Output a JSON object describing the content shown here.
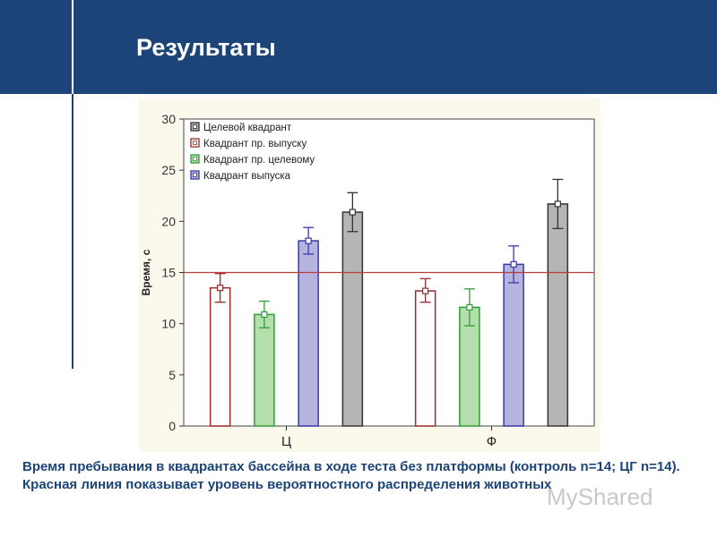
{
  "slide": {
    "title": "Результаты",
    "caption": "Время пребывания в квадрантах бассейна в ходе теста без платформы (контроль n=14; ЦГ n=14). Красная линия показывает уровень вероятностного распределения животных",
    "watermark": "MyShared"
  },
  "chart_data": {
    "type": "bar",
    "ylabel": "Время, с",
    "xlabel": "",
    "ylim": [
      0,
      30
    ],
    "yticks": [
      0,
      5,
      10,
      15,
      20,
      25,
      30
    ],
    "categories": [
      "Ц",
      "Ф"
    ],
    "reference_line": {
      "value": 15,
      "color": "#c0393b"
    },
    "legend_position": "top-left",
    "grid": false,
    "series": [
      {
        "name": "Квадрант пр. выпуску",
        "color": "#9b2a2a",
        "fill": "#ffffff",
        "values": [
          13.5,
          13.2
        ],
        "err_low": [
          12.1,
          12.1
        ],
        "err_high": [
          14.9,
          14.4
        ]
      },
      {
        "name": "Квадрант пр. целевому",
        "color": "#2e9e35",
        "fill": "#b4dfad",
        "values": [
          10.9,
          11.6
        ],
        "err_low": [
          9.6,
          9.8
        ],
        "err_high": [
          12.2,
          13.4
        ]
      },
      {
        "name": "Квадрант выпуска",
        "color": "#3939a8",
        "fill": "#b4b4de",
        "values": [
          18.1,
          15.8
        ],
        "err_low": [
          16.8,
          14.0
        ],
        "err_high": [
          19.4,
          17.6
        ]
      },
      {
        "name": "Целевой квадрант",
        "color": "#333333",
        "fill": "#b5b5b5",
        "values": [
          20.9,
          21.7
        ],
        "err_low": [
          19.0,
          19.3
        ],
        "err_high": [
          22.8,
          24.1
        ]
      }
    ],
    "legend_order": [
      "Целевой квадрант",
      "Квадрант пр. выпуску",
      "Квадрант пр. целевому",
      "Квадрант выпуска"
    ]
  }
}
